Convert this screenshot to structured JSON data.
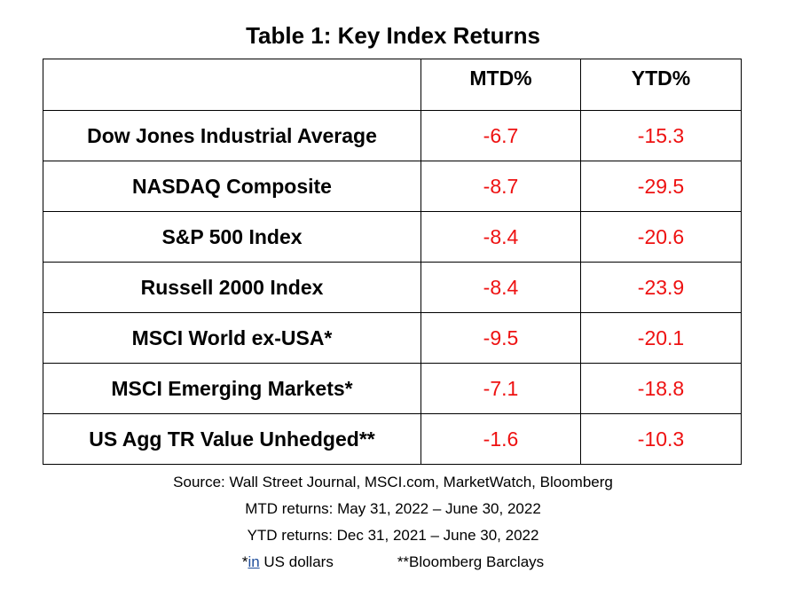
{
  "title": "Table 1: Key Index Returns",
  "colors": {
    "negative_value": "#ee1111",
    "text": "#000000",
    "border": "#000000"
  },
  "table": {
    "columns": [
      "",
      "MTD%",
      "YTD%"
    ],
    "rows": [
      {
        "name": "Dow Jones Industrial Average",
        "mtd": "-6.7",
        "ytd": "-15.3"
      },
      {
        "name": "NASDAQ Composite",
        "mtd": "-8.7",
        "ytd": "-29.5"
      },
      {
        "name": "S&P 500 Index",
        "mtd": "-8.4",
        "ytd": "-20.6"
      },
      {
        "name": "Russell 2000 Index",
        "mtd": "-8.4",
        "ytd": "-23.9"
      },
      {
        "name": "MSCI World ex-USA*",
        "mtd": "-9.5",
        "ytd": "-20.1"
      },
      {
        "name": "MSCI Emerging Markets*",
        "mtd": "-7.1",
        "ytd": "-18.8"
      },
      {
        "name": "US Agg TR Value Unhedged**",
        "mtd": "-1.6",
        "ytd": "-10.3"
      }
    ]
  },
  "notes": {
    "source": "Source: Wall Street Journal, MSCI.com, MarketWatch, Bloomberg",
    "mtd_range": "MTD returns: May 31, 2022 – June 30, 2022",
    "ytd_range": "YTD returns: Dec 31, 2021 – June 30, 2022",
    "footnote_1_prefix": "*",
    "footnote_1_link": "in",
    "footnote_1_rest": " US dollars",
    "footnote_2": "**Bloomberg Barclays"
  }
}
